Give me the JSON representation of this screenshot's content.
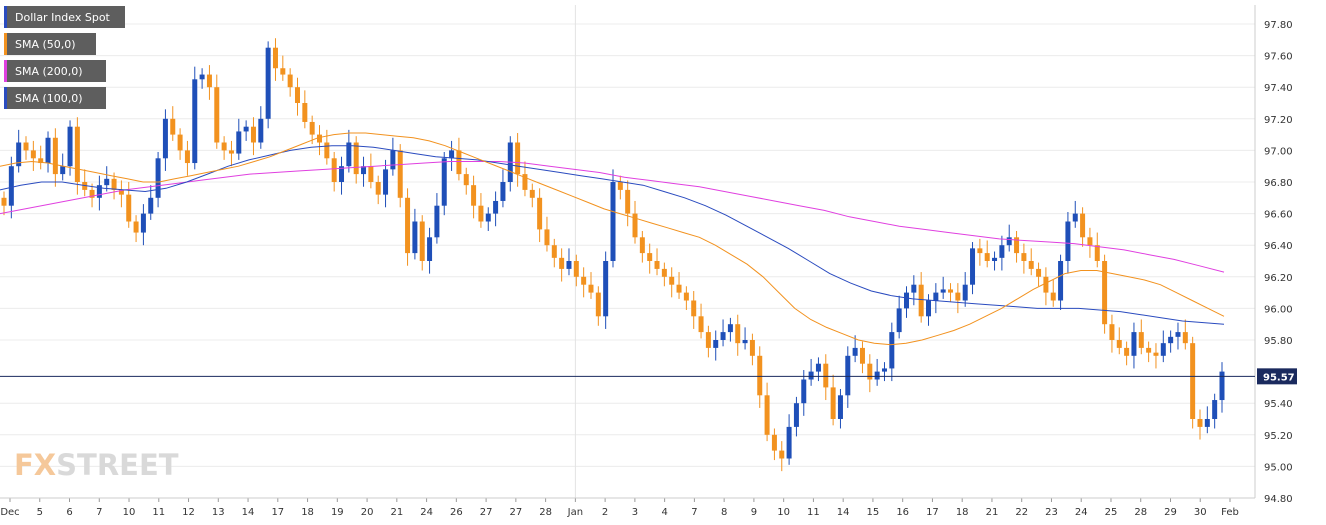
{
  "chart_data": {
    "type": "candlestick",
    "title": "Dollar Index Spot",
    "y_ticks": [
      "97.80",
      "97.60",
      "97.40",
      "97.20",
      "97.00",
      "96.80",
      "96.60",
      "96.40",
      "96.20",
      "96.00",
      "95.80",
      "95.40",
      "95.20",
      "95.00",
      "94.80"
    ],
    "ylim": [
      94.8,
      97.9
    ],
    "x_labels": [
      "Dec",
      "5",
      "6",
      "7",
      "10",
      "11",
      "12",
      "13",
      "14",
      "17",
      "18",
      "19",
      "20",
      "21",
      "24",
      "26",
      "27",
      "27",
      "28",
      "Jan",
      "2",
      "3",
      "4",
      "7",
      "8",
      "9",
      "10",
      "11",
      "14",
      "15",
      "16",
      "17",
      "18",
      "21",
      "22",
      "23",
      "24",
      "25",
      "28",
      "29",
      "30",
      "Feb"
    ],
    "current_price": 95.57,
    "current_price_label": "95.57",
    "legend": [
      {
        "label": "Dollar Index Spot",
        "color": "#2a4bbf"
      },
      {
        "label": "SMA (50,0)",
        "color": "#f2921f"
      },
      {
        "label": "SMA (200,0)",
        "color": "#e040e0"
      },
      {
        "label": "SMA (100,0)",
        "color": "#2a4bbf"
      }
    ],
    "up_color": "#1f4fb8",
    "down_color": "#f2921f",
    "close_series": [
      96.65,
      96.9,
      97.05,
      97.0,
      96.95,
      96.92,
      97.08,
      96.85,
      96.9,
      97.15,
      96.8,
      96.75,
      96.7,
      96.78,
      96.82,
      96.75,
      96.72,
      96.55,
      96.48,
      96.6,
      96.7,
      96.95,
      97.2,
      97.1,
      97.0,
      96.92,
      97.45,
      97.48,
      97.4,
      97.05,
      97.0,
      96.98,
      97.12,
      97.15,
      97.05,
      97.2,
      97.65,
      97.52,
      97.48,
      97.4,
      97.3,
      97.18,
      97.1,
      97.05,
      96.95,
      96.8,
      96.9,
      97.05,
      96.85,
      96.9,
      96.8,
      96.72,
      96.88,
      97.0,
      96.7,
      96.35,
      96.55,
      96.3,
      96.45,
      96.65,
      96.95,
      97.0,
      96.85,
      96.78,
      96.65,
      96.55,
      96.6,
      96.68,
      96.8,
      97.05,
      96.85,
      96.75,
      96.7,
      96.5,
      96.4,
      96.32,
      96.25,
      96.3,
      96.2,
      96.15,
      96.1,
      95.95,
      96.3,
      96.8,
      96.75,
      96.6,
      96.45,
      96.35,
      96.3,
      96.25,
      96.2,
      96.15,
      96.1,
      96.05,
      95.95,
      95.85,
      95.75,
      95.8,
      95.85,
      95.9,
      95.78,
      95.8,
      95.7,
      95.45,
      95.2,
      95.1,
      95.05,
      95.25,
      95.4,
      95.55,
      95.6,
      95.65,
      95.5,
      95.3,
      95.45,
      95.7,
      95.75,
      95.65,
      95.55,
      95.6,
      95.62,
      95.85,
      96.0,
      96.1,
      96.15,
      95.95,
      96.05,
      96.1,
      96.12,
      96.1,
      96.05,
      96.15,
      96.38,
      96.35,
      96.3,
      96.32,
      96.4,
      96.45,
      96.35,
      96.3,
      96.25,
      96.2,
      96.1,
      96.05,
      96.3,
      96.55,
      96.6,
      96.45,
      96.4,
      96.3,
      95.9,
      95.8,
      95.75,
      95.7,
      95.85,
      95.75,
      95.72,
      95.7,
      95.78,
      95.82,
      95.85,
      95.78,
      95.3,
      95.25,
      95.3,
      95.42,
      95.6
    ],
    "sma50": [
      96.9,
      96.92,
      96.93,
      96.92,
      96.9,
      96.88,
      96.86,
      96.84,
      96.82,
      96.8,
      96.8,
      96.82,
      96.84,
      96.86,
      96.88,
      96.9,
      96.93,
      96.96,
      97.0,
      97.04,
      97.08,
      97.1,
      97.11,
      97.11,
      97.1,
      97.09,
      97.08,
      97.06,
      97.03,
      96.99,
      96.95,
      96.91,
      96.87,
      96.83,
      96.79,
      96.75,
      96.71,
      96.67,
      96.63,
      96.6,
      96.57,
      96.54,
      96.51,
      96.48,
      96.45,
      96.4,
      96.34,
      96.28,
      96.2,
      96.1,
      96.0,
      95.93,
      95.88,
      95.84,
      95.8,
      95.78,
      95.77,
      95.78,
      95.8,
      95.83,
      95.86,
      95.9,
      95.95,
      96.0,
      96.06,
      96.12,
      96.17,
      96.22,
      96.24,
      96.24,
      96.22,
      96.2,
      96.18,
      96.15,
      96.1,
      96.05,
      96.0,
      95.95
    ],
    "sma100": [
      96.75,
      96.78,
      96.8,
      96.8,
      96.78,
      96.76,
      96.75,
      96.74,
      96.76,
      96.8,
      96.85,
      96.9,
      96.94,
      96.97,
      97.0,
      97.02,
      97.03,
      97.03,
      97.02,
      97.0,
      96.98,
      96.96,
      96.95,
      96.94,
      96.92,
      96.9,
      96.88,
      96.86,
      96.84,
      96.82,
      96.8,
      96.78,
      96.74,
      96.7,
      96.65,
      96.59,
      96.52,
      96.45,
      96.38,
      96.3,
      96.22,
      96.16,
      96.11,
      96.08,
      96.06,
      96.05,
      96.04,
      96.03,
      96.02,
      96.01,
      96.0,
      96.0,
      96.0,
      95.99,
      95.98,
      95.96,
      95.94,
      95.92,
      95.91,
      95.9
    ],
    "sma200": [
      96.6,
      96.63,
      96.66,
      96.69,
      96.72,
      96.75,
      96.77,
      96.79,
      96.81,
      96.83,
      96.85,
      96.86,
      96.87,
      96.88,
      96.89,
      96.9,
      96.91,
      96.92,
      96.93,
      96.93,
      96.93,
      96.92,
      96.9,
      96.88,
      96.86,
      96.83,
      96.81,
      96.79,
      96.77,
      96.74,
      96.71,
      96.68,
      96.65,
      96.62,
      96.58,
      96.55,
      96.52,
      96.5,
      96.48,
      96.46,
      96.44,
      96.43,
      96.42,
      96.41,
      96.39,
      96.37,
      96.34,
      96.31,
      96.27,
      96.23
    ]
  },
  "brand": {
    "fx": "FX",
    "street": "STREET"
  }
}
